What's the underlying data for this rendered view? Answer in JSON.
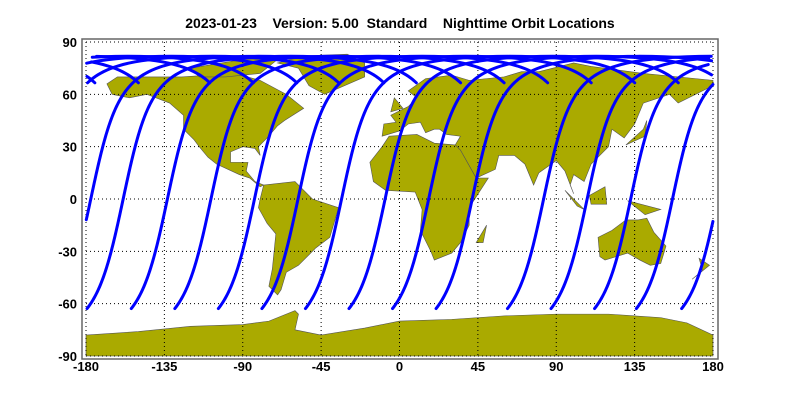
{
  "title": "2023-01-23    Version: 5.00  Standard    Nighttime Orbit Locations",
  "map": {
    "projection": "equirectangular",
    "lon_range": [
      -180,
      180
    ],
    "lat_range": [
      -90,
      90
    ],
    "x_ticks": [
      "-180",
      "-135",
      "-90",
      "-45",
      "0",
      "45",
      "90",
      "135",
      "180"
    ],
    "y_ticks": [
      "90",
      "60",
      "30",
      "0",
      "-30",
      "-60",
      "-90"
    ],
    "grid": "dotted",
    "land_color": "#aaaa00",
    "track_color": "#0000ff",
    "orbit_track_start_lons_at_lat_minus63": [
      -179.4,
      -154,
      -129,
      -104,
      -79,
      -54,
      -29,
      -4,
      21,
      62,
      87,
      112,
      136,
      162
    ]
  }
}
